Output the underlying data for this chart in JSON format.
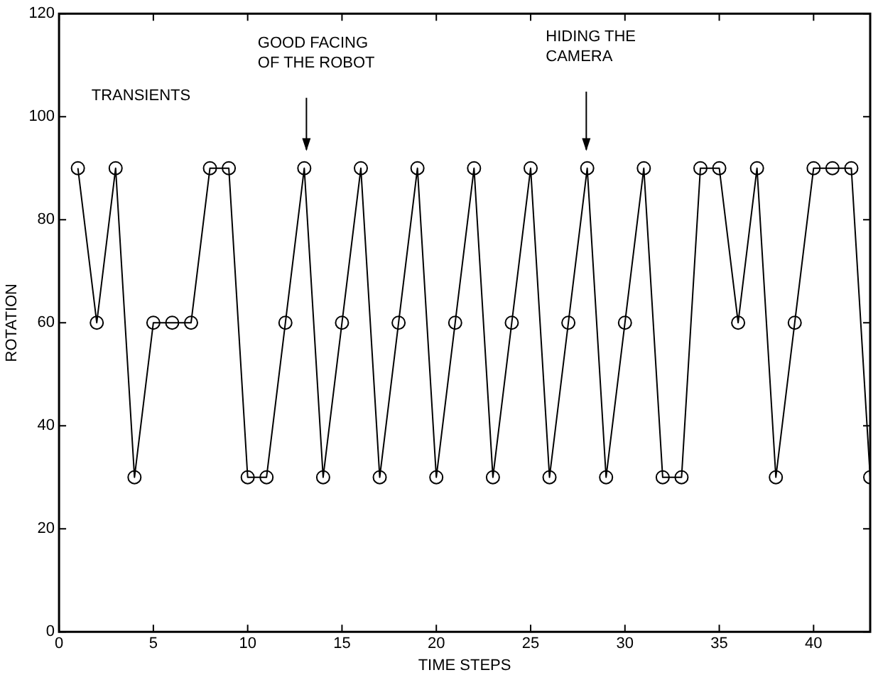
{
  "chart_data": {
    "type": "line",
    "xlabel": "TIME STEPS",
    "ylabel": "ROTATION",
    "x": [
      1,
      2,
      3,
      4,
      5,
      6,
      7,
      8,
      9,
      10,
      11,
      12,
      13,
      14,
      15,
      16,
      17,
      18,
      19,
      20,
      21,
      22,
      23,
      24,
      25,
      26,
      27,
      28,
      29,
      30,
      31,
      32,
      33,
      34,
      35,
      36,
      37,
      38,
      39,
      40,
      41,
      42,
      43
    ],
    "series": [
      {
        "color": "#000000",
        "values": [
          90,
          60,
          90,
          30,
          60,
          60,
          60,
          90,
          90,
          30,
          30,
          60,
          90,
          30,
          60,
          90,
          30,
          60,
          90,
          30,
          60,
          90,
          30,
          60,
          90,
          30,
          60,
          90,
          30,
          60,
          90,
          30,
          30,
          90,
          90,
          60,
          90,
          30,
          60,
          90,
          90,
          90,
          30
        ]
      }
    ],
    "xlim": [
      0,
      43
    ],
    "xticks": [
      0,
      5,
      10,
      15,
      20,
      25,
      30,
      35,
      40
    ],
    "ylim": [
      0,
      120
    ],
    "yticks": [
      0,
      20,
      40,
      60,
      80,
      100,
      120
    ],
    "marker": "circle",
    "line_style": "solid",
    "grid": false,
    "legend": false,
    "annotations": [
      "TRANSIENTS",
      "GOOD FACING OF THE ROBOT",
      "HIDING THE CAMERA"
    ]
  }
}
